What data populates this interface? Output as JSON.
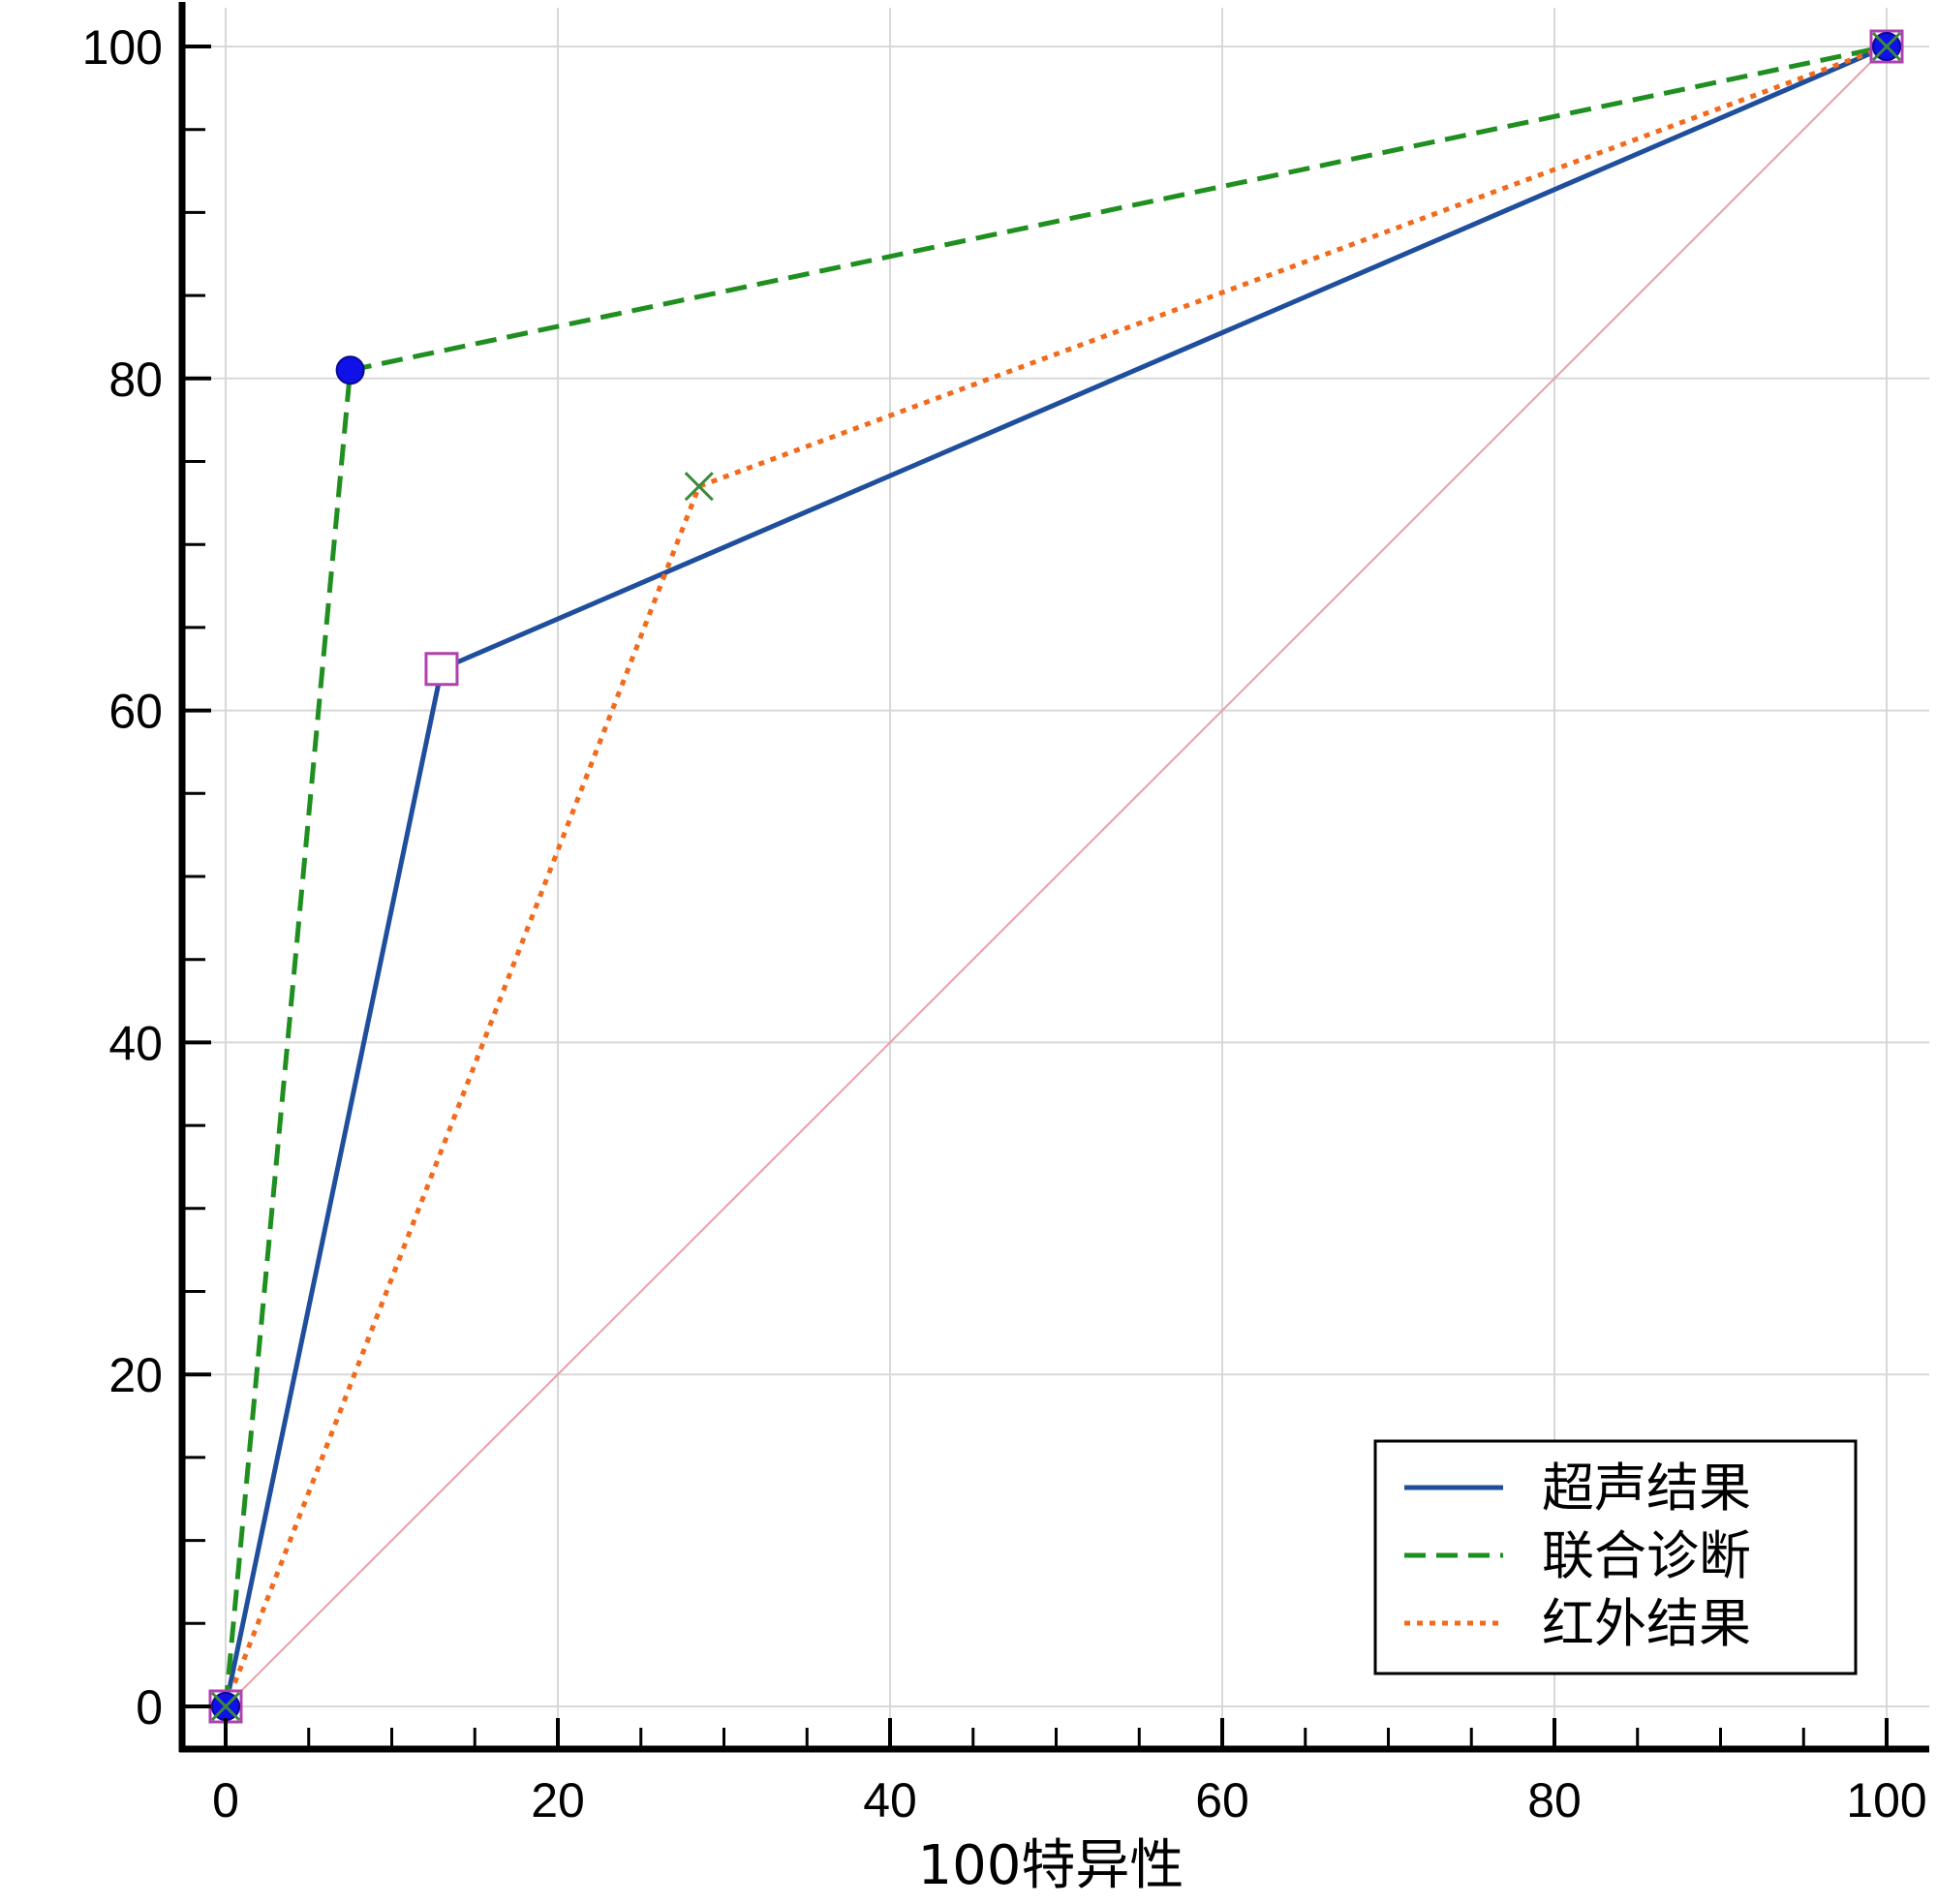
{
  "chart_data": {
    "type": "line",
    "title": "",
    "xlabel": "100特异性",
    "ylabel": "",
    "xlim": [
      0,
      100
    ],
    "ylim": [
      0,
      100
    ],
    "x_ticks": [
      0,
      20,
      40,
      60,
      80,
      100
    ],
    "y_ticks": [
      0,
      20,
      40,
      60,
      80,
      100
    ],
    "x_tick_labels": [
      "0",
      "20",
      "40",
      "60",
      "80",
      "100"
    ],
    "y_tick_labels": [
      "0",
      "20",
      "40",
      "60",
      "80",
      "100"
    ],
    "grid": true,
    "legend_position": "bottom-right",
    "reference_line": {
      "x": [
        0,
        100
      ],
      "y": [
        0,
        100
      ],
      "color": "#e8a0a8"
    },
    "series": [
      {
        "name": "超声结果",
        "x": [
          0,
          13,
          100
        ],
        "y": [
          0,
          62.5,
          100
        ],
        "color": "#1f4e9c",
        "dash": "solid",
        "marker": "open-square",
        "marker_color": "#b040b0"
      },
      {
        "name": "联合诊断",
        "x": [
          0,
          7.5,
          100
        ],
        "y": [
          0,
          80.5,
          100
        ],
        "color": "#1f8f1f",
        "dash": "dashed",
        "marker": "filled-circle",
        "marker_color": "#1010e8"
      },
      {
        "name": "红外结果",
        "x": [
          0,
          28.5,
          100
        ],
        "y": [
          0,
          73.5,
          100
        ],
        "color": "#f26a1b",
        "dash": "dotted",
        "marker": "x-cross",
        "marker_color": "#3a8a3a"
      }
    ]
  }
}
